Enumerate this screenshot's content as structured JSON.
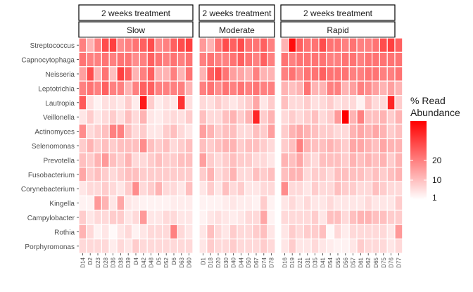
{
  "chart_data": {
    "type": "heatmap",
    "facet_top_labels": [
      "2 weeks treatment",
      "2 weeks treatment",
      "2 weeks treatment"
    ],
    "panels": [
      {
        "name": "Slow",
        "x": [
          "D14",
          "D2",
          "D23",
          "D28",
          "D36",
          "D38",
          "D39",
          "D4",
          "D42",
          "D48",
          "D5",
          "D52",
          "D6",
          "D63",
          "D60"
        ],
        "values": [
          [
            20,
            12,
            20,
            28,
            30,
            18,
            20,
            22,
            25,
            28,
            18,
            20,
            25,
            28,
            30
          ],
          [
            22,
            20,
            20,
            22,
            20,
            22,
            22,
            18,
            20,
            25,
            22,
            20,
            22,
            20,
            22
          ],
          [
            15,
            28,
            12,
            22,
            10,
            30,
            25,
            12,
            20,
            25,
            12,
            12,
            20,
            12,
            22
          ],
          [
            20,
            22,
            20,
            25,
            20,
            20,
            12,
            20,
            25,
            25,
            20,
            20,
            20,
            20,
            12
          ],
          [
            26,
            5,
            2,
            5,
            5,
            4,
            8,
            3,
            36,
            8,
            3,
            5,
            4,
            32,
            5
          ],
          [
            4,
            8,
            4,
            6,
            8,
            5,
            10,
            6,
            12,
            4,
            3,
            5,
            6,
            5,
            8
          ],
          [
            18,
            6,
            8,
            10,
            20,
            20,
            10,
            6,
            8,
            4,
            4,
            8,
            10,
            6,
            4
          ],
          [
            8,
            12,
            8,
            10,
            8,
            10,
            10,
            10,
            18,
            10,
            8,
            10,
            6,
            8,
            10
          ],
          [
            10,
            8,
            12,
            16,
            10,
            8,
            12,
            6,
            6,
            8,
            10,
            8,
            8,
            10,
            10
          ],
          [
            14,
            8,
            10,
            8,
            6,
            8,
            10,
            10,
            8,
            8,
            8,
            8,
            8,
            8,
            8
          ],
          [
            4,
            6,
            6,
            8,
            6,
            4,
            8,
            18,
            6,
            8,
            12,
            6,
            6,
            4,
            10
          ],
          [
            2,
            2,
            16,
            12,
            4,
            14,
            4,
            3,
            2,
            2,
            2,
            2,
            3,
            3,
            3
          ],
          [
            8,
            4,
            6,
            6,
            8,
            8,
            4,
            6,
            16,
            4,
            4,
            6,
            6,
            4,
            4
          ],
          [
            12,
            6,
            2,
            4,
            1,
            4,
            6,
            2,
            4,
            6,
            6,
            6,
            20,
            6,
            4
          ],
          [
            6,
            6,
            6,
            6,
            3,
            6,
            4,
            8,
            6,
            6,
            6,
            6,
            6,
            6,
            6
          ]
        ]
      },
      {
        "name": "Moderate",
        "x": [
          "D1",
          "D18",
          "D20",
          "D30",
          "D40",
          "D44",
          "D50",
          "D67",
          "D74",
          "D78"
        ],
        "values": [
          [
            16,
            12,
            22,
            28,
            25,
            28,
            22,
            22,
            25,
            20
          ],
          [
            20,
            22,
            20,
            20,
            22,
            25,
            22,
            20,
            25,
            20
          ],
          [
            12,
            25,
            28,
            22,
            15,
            14,
            12,
            20,
            12,
            12
          ],
          [
            20,
            22,
            18,
            22,
            20,
            22,
            20,
            22,
            20,
            20
          ],
          [
            6,
            5,
            8,
            6,
            4,
            6,
            8,
            14,
            4,
            8
          ],
          [
            10,
            6,
            6,
            10,
            12,
            8,
            12,
            34,
            8,
            12
          ],
          [
            15,
            12,
            8,
            10,
            10,
            6,
            6,
            10,
            8,
            15
          ],
          [
            10,
            8,
            10,
            12,
            12,
            8,
            10,
            10,
            8,
            6
          ],
          [
            15,
            8,
            6,
            8,
            10,
            8,
            8,
            6,
            6,
            4
          ],
          [
            8,
            12,
            6,
            8,
            12,
            6,
            6,
            10,
            8,
            10
          ],
          [
            4,
            8,
            4,
            10,
            6,
            8,
            4,
            4,
            6,
            6
          ],
          [
            2,
            2,
            2,
            3,
            4,
            3,
            3,
            2,
            8,
            2
          ],
          [
            2,
            4,
            5,
            4,
            3,
            4,
            6,
            6,
            14,
            2
          ],
          [
            4,
            10,
            6,
            4,
            8,
            6,
            6,
            8,
            10,
            4
          ],
          [
            4,
            8,
            6,
            6,
            8,
            6,
            6,
            6,
            8,
            6
          ]
        ]
      },
      {
        "name": "Rapid",
        "x": [
          "D16",
          "D19",
          "D21",
          "D31",
          "D35",
          "D41",
          "D54",
          "D55",
          "D56",
          "D57",
          "D61",
          "D62",
          "D65",
          "D75",
          "D76",
          "D77"
        ],
        "values": [
          [
            12,
            38,
            25,
            22,
            22,
            28,
            22,
            22,
            20,
            22,
            20,
            20,
            22,
            28,
            30,
            25
          ],
          [
            22,
            20,
            22,
            22,
            22,
            22,
            20,
            20,
            22,
            22,
            20,
            22,
            22,
            22,
            22,
            22
          ],
          [
            20,
            22,
            18,
            22,
            22,
            25,
            22,
            22,
            22,
            20,
            20,
            22,
            22,
            20,
            20,
            22
          ],
          [
            12,
            10,
            12,
            22,
            12,
            12,
            20,
            20,
            12,
            15,
            20,
            18,
            15,
            12,
            15,
            12
          ],
          [
            10,
            6,
            6,
            8,
            5,
            6,
            8,
            5,
            6,
            6,
            2,
            10,
            6,
            6,
            34,
            8
          ],
          [
            6,
            8,
            6,
            8,
            10,
            6,
            8,
            16,
            40,
            12,
            20,
            10,
            10,
            12,
            8,
            12
          ],
          [
            8,
            12,
            14,
            12,
            10,
            8,
            8,
            6,
            6,
            12,
            14,
            12,
            14,
            12,
            8,
            10
          ],
          [
            8,
            10,
            20,
            12,
            10,
            10,
            12,
            10,
            8,
            14,
            14,
            12,
            10,
            14,
            12,
            12
          ],
          [
            12,
            10,
            14,
            8,
            6,
            10,
            10,
            10,
            8,
            12,
            10,
            12,
            10,
            12,
            8,
            12
          ],
          [
            10,
            12,
            12,
            6,
            8,
            8,
            6,
            10,
            10,
            10,
            10,
            8,
            10,
            8,
            10,
            12
          ],
          [
            18,
            6,
            6,
            4,
            8,
            6,
            6,
            10,
            8,
            8,
            6,
            6,
            10,
            8,
            6,
            6
          ],
          [
            4,
            6,
            4,
            6,
            4,
            4,
            6,
            4,
            4,
            4,
            4,
            6,
            4,
            4,
            4,
            8
          ],
          [
            6,
            6,
            6,
            6,
            8,
            4,
            10,
            10,
            6,
            10,
            12,
            12,
            10,
            10,
            8,
            8
          ],
          [
            4,
            8,
            6,
            8,
            8,
            10,
            1,
            6,
            3,
            6,
            6,
            6,
            6,
            6,
            4,
            16
          ],
          [
            4,
            8,
            4,
            4,
            6,
            4,
            3,
            2,
            2,
            4,
            8,
            6,
            6,
            6,
            4,
            6
          ]
        ]
      }
    ],
    "y": [
      "Streptococcus",
      "Capnocytophaga",
      "Neisseria",
      "Leptotrichia",
      "Lautropia",
      "Veillonella",
      "Actinomyces",
      "Selenomonas",
      "Prevotella",
      "Fusobacterium",
      "Corynebacterium",
      "Kingella",
      "Campylobacter",
      "Rothia",
      "Porphyromonas"
    ],
    "legend": {
      "title_line1": "% Read",
      "title_line2": "Abundance",
      "ticks": [
        {
          "value": 1,
          "label": "1"
        },
        {
          "value": 10,
          "label": "10"
        },
        {
          "value": 20,
          "label": "20"
        }
      ],
      "range": [
        0,
        40
      ],
      "low_color": "#ffffff",
      "high_color": "#ff0000"
    }
  }
}
